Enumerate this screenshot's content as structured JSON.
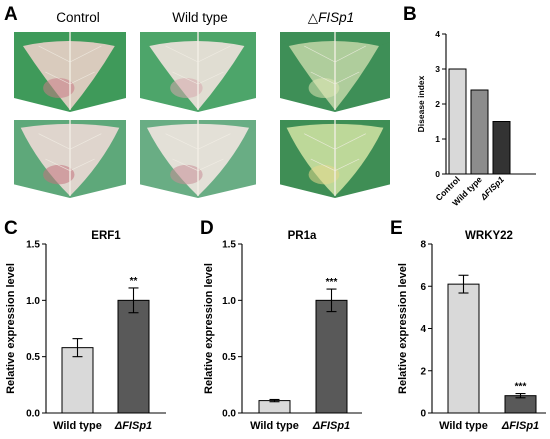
{
  "panels": {
    "a": "A",
    "b": "B",
    "c": "C",
    "d": "D",
    "e": "E"
  },
  "photos": {
    "labels": [
      "Control",
      "Wild type",
      "FISp1"
    ],
    "delta_symbol": "△",
    "rows": [
      [
        {
          "name": "leaf-control-top",
          "base": "#3f9a5a",
          "lesion": "#e6cfc6",
          "spot": "#c97b87"
        },
        {
          "name": "leaf-wildtype-top",
          "base": "#4da56a",
          "lesion": "#ede2db",
          "spot": "#d7a7ad"
        },
        {
          "name": "leaf-fisp1-top",
          "base": "#3e8f57",
          "lesion": "#b9d3a2",
          "spot": "#dfe7b4"
        }
      ],
      [
        {
          "name": "leaf-control-bottom",
          "base": "#5ea87a",
          "lesion": "#ead9d4",
          "spot": "#c2737d"
        },
        {
          "name": "leaf-wildtype-bottom",
          "base": "#69ad84",
          "lesion": "#eee4de",
          "spot": "#c88e98"
        },
        {
          "name": "leaf-fisp1-bottom",
          "base": "#3f8e55",
          "lesion": "#c8de9f",
          "spot": "#e5d88c"
        }
      ]
    ]
  },
  "colors": {
    "control": "#d9d9d9",
    "wild_type_b": "#8c8c8c",
    "fisp1_b": "#333333",
    "wild_type": "#d9d9d9",
    "fisp1": "#595959"
  },
  "chart_data": [
    {
      "id": "B",
      "type": "bar",
      "title": "",
      "ylabel": "Disease index",
      "categories": [
        "Control",
        "Wild type",
        "FISp1"
      ],
      "category_italic": [
        false,
        false,
        true
      ],
      "category_delta": [
        false,
        false,
        true
      ],
      "values": [
        3.0,
        2.4,
        1.5
      ],
      "errors": [
        null,
        null,
        null
      ],
      "significance": [
        "",
        "",
        ""
      ],
      "ylim": [
        0,
        4
      ],
      "ticks": [
        "0",
        "1",
        "2",
        "3",
        "4"
      ],
      "colors": [
        "#d9d9d9",
        "#8c8c8c",
        "#333333"
      ]
    },
    {
      "id": "C",
      "type": "bar",
      "title": "ERF1",
      "ylabel": "Relative expression level",
      "categories": [
        "Wild type",
        "FISp1"
      ],
      "category_italic": [
        false,
        true
      ],
      "category_delta": [
        false,
        true
      ],
      "values": [
        0.58,
        1.0
      ],
      "errors": [
        0.08,
        0.11
      ],
      "significance": [
        "",
        "**"
      ],
      "ylim": [
        0,
        1.5
      ],
      "ticks": [
        "0.0",
        "0.5",
        "1.0",
        "1.5"
      ],
      "colors": [
        "#d9d9d9",
        "#595959"
      ]
    },
    {
      "id": "D",
      "type": "bar",
      "title": "PR1a",
      "ylabel": "Relative expression level",
      "categories": [
        "Wild type",
        "FISp1"
      ],
      "category_italic": [
        false,
        true
      ],
      "category_delta": [
        false,
        true
      ],
      "values": [
        0.11,
        1.0
      ],
      "errors": [
        0.01,
        0.1
      ],
      "significance": [
        "",
        "***"
      ],
      "ylim": [
        0,
        1.5
      ],
      "ticks": [
        "0.0",
        "0.5",
        "1.0",
        "1.5"
      ],
      "colors": [
        "#d9d9d9",
        "#595959"
      ]
    },
    {
      "id": "E",
      "type": "bar",
      "title": "WRKY22",
      "ylabel": "Relative expression level",
      "categories": [
        "Wild type",
        "FISp1"
      ],
      "category_italic": [
        false,
        true
      ],
      "category_delta": [
        false,
        true
      ],
      "values": [
        6.1,
        0.82
      ],
      "errors": [
        0.42,
        0.1
      ],
      "significance": [
        "",
        "***"
      ],
      "ylim": [
        0,
        8
      ],
      "ticks": [
        "0",
        "2",
        "4",
        "6",
        "8"
      ],
      "colors": [
        "#d9d9d9",
        "#595959"
      ]
    }
  ]
}
